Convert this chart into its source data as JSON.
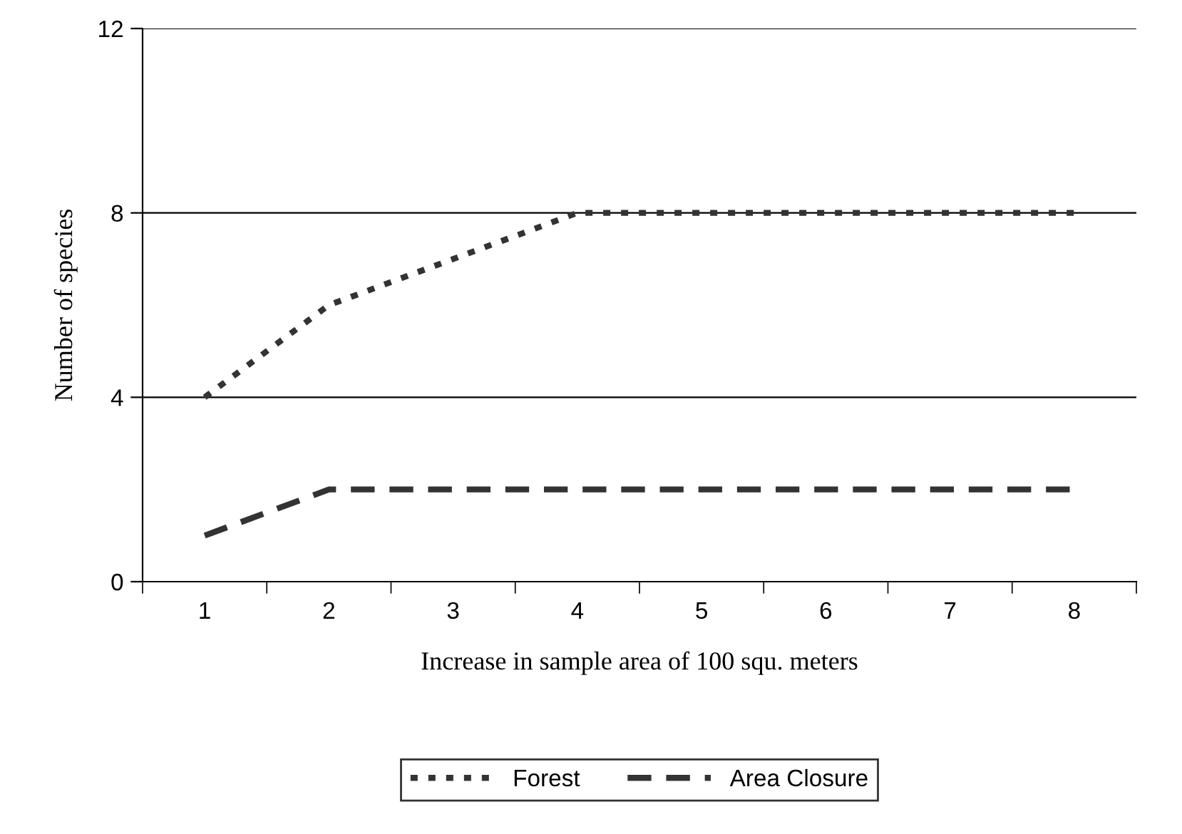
{
  "chart_data": {
    "type": "line",
    "xlabel": "Increase in sample area of 100 squ. meters",
    "ylabel": "Number of species",
    "categories": [
      "1",
      "2",
      "3",
      "4",
      "5",
      "6",
      "7",
      "8"
    ],
    "series": [
      {
        "name": "Forest",
        "color": "#333333",
        "line_style": "dotted",
        "values": [
          4,
          6,
          7,
          8,
          8,
          8,
          8,
          8
        ]
      },
      {
        "name": "Area Closure",
        "color": "#333333",
        "line_style": "dashed",
        "values": [
          1,
          2,
          2,
          2,
          2,
          2,
          2,
          2
        ]
      }
    ],
    "ylim": [
      0,
      12
    ],
    "yticks": [
      0,
      4,
      8,
      12
    ],
    "grid": "y",
    "legend": "bottom",
    "marker": "none"
  }
}
